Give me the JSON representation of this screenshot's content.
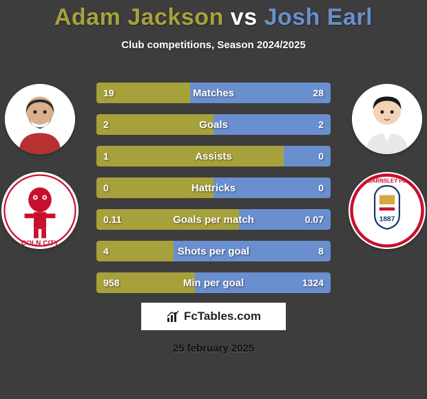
{
  "background_color": "#3d3d3d",
  "title": {
    "player1": "Adam Jackson",
    "vs": "vs",
    "player2": "Josh Earl",
    "player1_color": "#a7a13c",
    "vs_color": "#ffffff",
    "player2_color": "#6a8fcf"
  },
  "subtitle": "Club competitions, Season 2024/2025",
  "left_bar_color": "#a7a13c",
  "right_bar_color": "#6a8fcf",
  "bar_empty_color": "#2a2a2a",
  "stats": [
    {
      "label": "Matches",
      "left_val": "19",
      "right_val": "28",
      "left_pct": 40,
      "right_pct": 60
    },
    {
      "label": "Goals",
      "left_val": "2",
      "right_val": "2",
      "left_pct": 50,
      "right_pct": 50
    },
    {
      "label": "Assists",
      "left_val": "1",
      "right_val": "0",
      "left_pct": 80,
      "right_pct": 20
    },
    {
      "label": "Hattricks",
      "left_val": "0",
      "right_val": "0",
      "left_pct": 50,
      "right_pct": 50
    },
    {
      "label": "Goals per match",
      "left_val": "0.11",
      "right_val": "0.07",
      "left_pct": 61,
      "right_pct": 39
    },
    {
      "label": "Shots per goal",
      "left_val": "4",
      "right_val": "8",
      "left_pct": 33,
      "right_pct": 67
    },
    {
      "label": "Min per goal",
      "left_val": "958",
      "right_val": "1324",
      "left_pct": 42,
      "right_pct": 58
    }
  ],
  "footer_brand": "FcTables.com",
  "footer_date": "25 february 2025",
  "player1_avatar_alt": "Adam Jackson photo",
  "player2_avatar_alt": "Josh Earl photo",
  "club1_alt": "Lincoln City badge",
  "club2_alt": "Barnsley FC badge"
}
